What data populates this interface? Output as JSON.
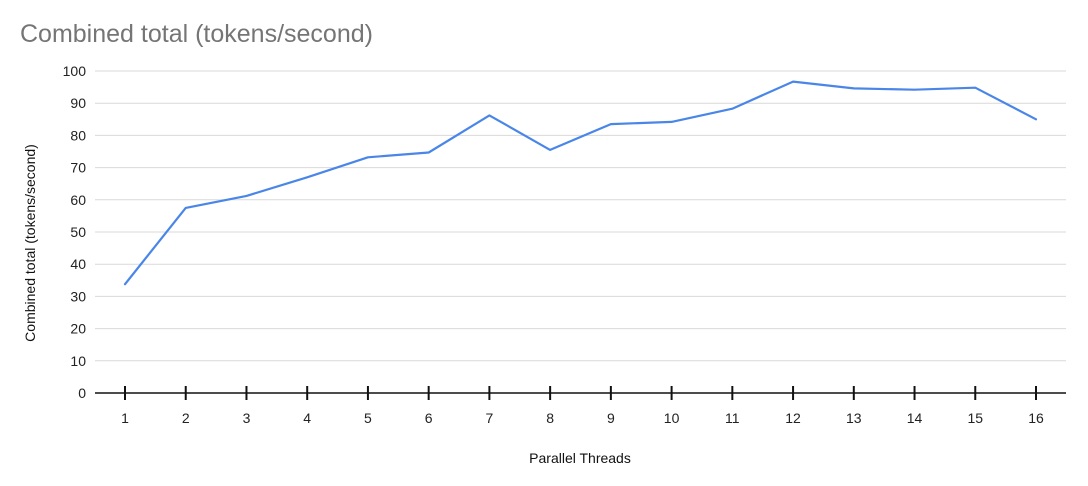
{
  "chart_data": {
    "type": "line",
    "title": "Combined total (tokens/second)",
    "xlabel": "Parallel Threads",
    "ylabel": "Combined total (tokens/second)",
    "categories": [
      "1",
      "2",
      "3",
      "4",
      "5",
      "6",
      "7",
      "8",
      "9",
      "10",
      "11",
      "12",
      "13",
      "14",
      "15",
      "16"
    ],
    "series": [
      {
        "values": [
          33.8,
          57.5,
          61.2,
          67.0,
          73.2,
          74.7,
          86.2,
          75.5,
          83.5,
          84.2,
          88.3,
          96.7,
          94.6,
          94.2,
          94.8,
          85.0
        ],
        "color": "#4a86e8"
      }
    ],
    "ylim": [
      0,
      100
    ],
    "yticks": [
      0,
      10,
      20,
      30,
      40,
      50,
      60,
      70,
      80,
      90,
      100
    ],
    "grid": true,
    "legend": "none"
  }
}
